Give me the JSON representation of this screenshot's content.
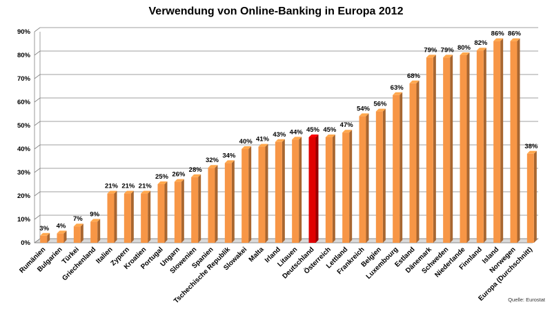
{
  "chart_data": {
    "type": "bar",
    "title": "Verwendung von Online-Banking in Europa 2012",
    "xlabel": "",
    "ylabel": "",
    "ylim": [
      0,
      90
    ],
    "yticks": [
      0,
      10,
      20,
      30,
      40,
      50,
      60,
      70,
      80,
      90
    ],
    "ytick_suffix": "%",
    "grid": true,
    "legend": "none",
    "categories": [
      "Rumänien",
      "Bulgarien",
      "Türkei",
      "Griechenland",
      "Italien",
      "Zypern",
      "Kroatien",
      "Portugal",
      "Ungarn",
      "Slowenien",
      "Spanien",
      "Tschechische Republik",
      "Slowakei",
      "Malta",
      "Irland",
      "Litauen",
      "Deutschland",
      "Österreich",
      "Lettland",
      "Frankreich",
      "Belgien",
      "Luxembourg",
      "Estland",
      "Dänemark",
      "Schweden",
      "Niederlande",
      "Finnland",
      "Island",
      "Norwegen",
      "Europa (Durchschnitt)"
    ],
    "values": [
      3,
      4,
      7,
      9,
      21,
      21,
      21,
      25,
      26,
      28,
      32,
      34,
      40,
      41,
      43,
      44,
      45,
      45,
      47,
      54,
      56,
      63,
      68,
      79,
      79,
      80,
      82,
      86,
      86,
      38
    ],
    "value_labels": [
      "3%",
      "4%",
      "7%",
      "9%",
      "21%",
      "21%",
      "21%",
      "25%",
      "26%",
      "28%",
      "32%",
      "34%",
      "40%",
      "41%",
      "43%",
      "44%",
      "45%",
      "45%",
      "47%",
      "54%",
      "56%",
      "63%",
      "68%",
      "79%",
      "79%",
      "80%",
      "82%",
      "86%",
      "86%",
      "38%"
    ],
    "colors": {
      "default": "#F79646",
      "highlight": "#E00000",
      "highlight_category": "Deutschland"
    }
  },
  "source": "Quelle: Eurostat"
}
